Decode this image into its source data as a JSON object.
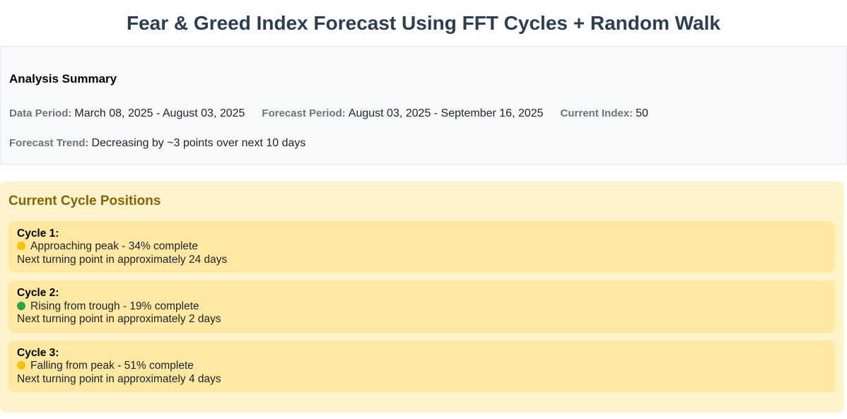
{
  "title": "Fear & Greed Index Forecast Using FFT Cycles + Random Walk",
  "summary": {
    "heading": "Analysis Summary",
    "data_period": {
      "label": "Data Period:",
      "value": "March 08, 2025 - August 03, 2025"
    },
    "forecast_period": {
      "label": "Forecast Period:",
      "value": "August 03, 2025 - September 16, 2025"
    },
    "current_index": {
      "label": "Current Index:",
      "value": "50"
    },
    "forecast_trend": {
      "label": "Forecast Trend:",
      "value": "Decreasing by ~3 points over next 10 days"
    }
  },
  "cycles": {
    "heading": "Current Cycle Positions",
    "cards": [
      {
        "title": "Cycle 1:",
        "status": "Approaching peak - 34% complete",
        "dot_color": "#ffc107",
        "next": "Next turning point in approximately 24 days"
      },
      {
        "title": "Cycle 2:",
        "status": "Rising from trough - 19% complete",
        "dot_color": "#28a745",
        "next": "Next turning point in approximately 2 days"
      },
      {
        "title": "Cycle 3:",
        "status": "Falling from peak - 51% complete",
        "dot_color": "#ffc107",
        "next": "Next turning point in approximately 4 days"
      }
    ]
  },
  "colors": {
    "title_text": "#2c3e50",
    "summary_bg": "#f8f9fa",
    "summary_label": "#6c757d",
    "cycles_panel_bg": "#fff3cd",
    "cycles_heading": "#856404",
    "cycle_card_bg": "#ffe8a1",
    "amber_dot": "#ffc107",
    "green_dot": "#28a745"
  }
}
